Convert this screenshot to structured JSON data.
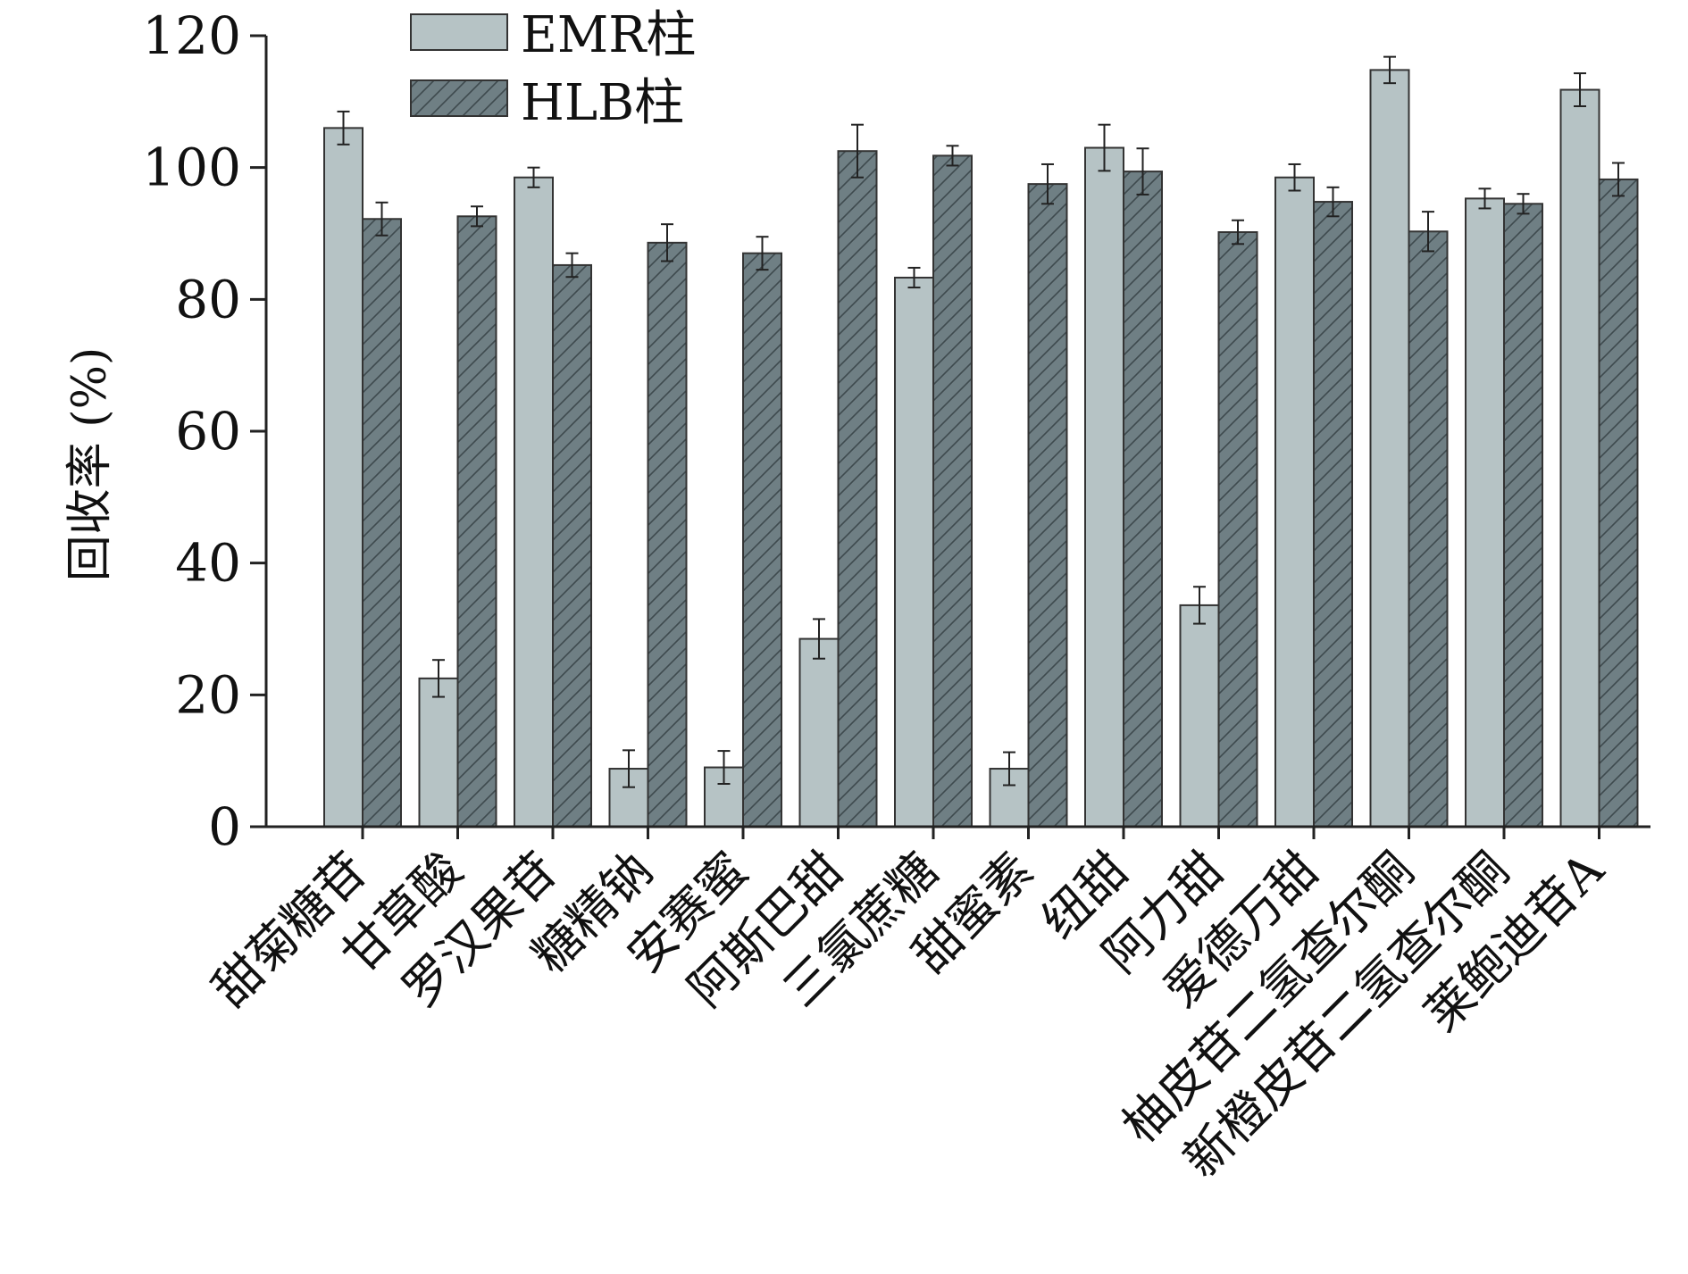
{
  "chart_data": {
    "type": "bar",
    "title": "",
    "xlabel": "",
    "ylabel": "回收率 (%)",
    "ylim": [
      0,
      120
    ],
    "yticks": [
      0,
      20,
      40,
      60,
      80,
      100,
      120
    ],
    "legend_position": "top-left",
    "categories": [
      "甜菊糖苷",
      "甘草酸",
      "罗汉果苷",
      "糖精钠",
      "安赛蜜",
      "阿斯巴甜",
      "三氯蔗糖",
      "甜蜜素",
      "纽甜",
      "阿力甜",
      "爱德万甜",
      "柚皮苷二氢查尔酮",
      "新橙皮苷二氢查尔酮",
      "莱鲍迪苷A"
    ],
    "series": [
      {
        "name": "EMR柱",
        "color": "#b6c3c5",
        "pattern": "solid",
        "values": [
          106,
          22.5,
          98.5,
          8.8,
          9.0,
          28.5,
          83.3,
          8.8,
          103,
          33.6,
          98.5,
          114.8,
          95.3,
          111.8
        ],
        "errors": [
          2.5,
          2.8,
          1.5,
          2.8,
          2.5,
          3.0,
          1.5,
          2.5,
          3.5,
          2.8,
          2.0,
          2.0,
          1.5,
          2.5
        ]
      },
      {
        "name": "HLB柱",
        "color": "#6f7f84",
        "pattern": "hatched",
        "values": [
          92.2,
          92.6,
          85.2,
          88.6,
          87.0,
          102.5,
          101.8,
          97.5,
          99.4,
          90.2,
          94.8,
          90.3,
          94.5,
          98.2
        ],
        "errors": [
          2.5,
          1.5,
          1.8,
          2.8,
          2.5,
          4.0,
          1.5,
          3.0,
          3.5,
          1.8,
          2.2,
          3.0,
          1.5,
          2.5
        ]
      }
    ]
  }
}
